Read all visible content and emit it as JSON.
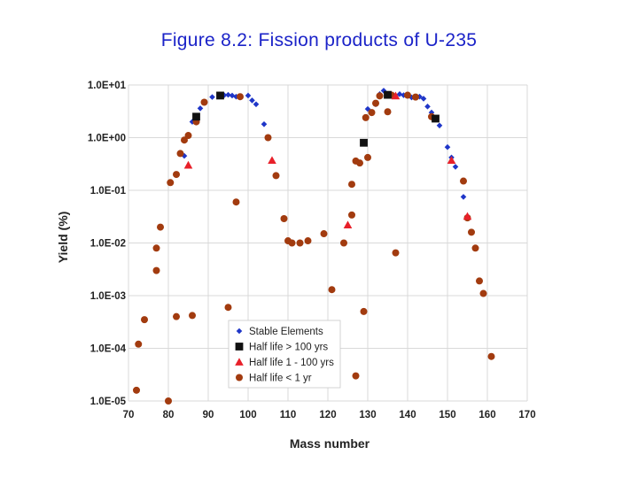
{
  "title": "Figure 8.2: Fission products of U-235",
  "colors": {
    "stable": "#1f36c8",
    "long": "#111111",
    "mid": "#e8202a",
    "short": "#a23b0f",
    "grid": "#d9d9d9",
    "title": "#1b23c8"
  },
  "chart_data": {
    "type": "scatter",
    "title": "Figure 8.2: Fission products of U-235",
    "xlabel": "Mass number",
    "ylabel": "Yield (%)",
    "xlim": [
      70,
      170
    ],
    "ylim_log10": [
      -5,
      1
    ],
    "x_ticks": [
      "70",
      "80",
      "90",
      "100",
      "110",
      "120",
      "130",
      "140",
      "150",
      "160",
      "170"
    ],
    "y_ticks": [
      "1.0E-05",
      "1.0E-04",
      "1.0E-03",
      "1.0E-02",
      "1.0E-01",
      "1.0E+00",
      "1.0E+01"
    ],
    "legend_position": "bottom-center",
    "series": [
      {
        "name": "Stable Elements",
        "marker": "diamond",
        "points": [
          [
            84,
            0.45
          ],
          [
            86,
            2.0
          ],
          [
            88,
            3.6
          ],
          [
            89,
            4.8
          ],
          [
            91,
            5.9
          ],
          [
            93,
            6.4
          ],
          [
            94,
            6.4
          ],
          [
            95,
            6.5
          ],
          [
            96,
            6.3
          ],
          [
            97,
            6.0
          ],
          [
            98,
            5.8
          ],
          [
            100,
            6.3
          ],
          [
            101,
            5.1
          ],
          [
            102,
            4.3
          ],
          [
            104,
            1.8
          ],
          [
            130,
            3.5
          ],
          [
            131,
            2.9
          ],
          [
            132,
            4.3
          ],
          [
            133,
            6.7
          ],
          [
            134,
            7.8
          ],
          [
            136,
            6.3
          ],
          [
            137,
            6.2
          ],
          [
            138,
            6.7
          ],
          [
            139,
            6.4
          ],
          [
            140,
            6.2
          ],
          [
            141,
            5.8
          ],
          [
            142,
            5.9
          ],
          [
            143,
            6.0
          ],
          [
            144,
            5.5
          ],
          [
            145,
            3.9
          ],
          [
            146,
            3.0
          ],
          [
            148,
            1.7
          ],
          [
            150,
            0.66
          ],
          [
            151,
            0.42
          ],
          [
            152,
            0.28
          ],
          [
            154,
            0.075
          ]
        ]
      },
      {
        "name": "Half life > 100 yrs",
        "marker": "square",
        "points": [
          [
            87,
            2.5
          ],
          [
            93,
            6.3
          ],
          [
            129,
            0.8
          ],
          [
            135,
            6.5
          ],
          [
            147,
            2.3
          ]
        ]
      },
      {
        "name": "Half life 1 - 100 yrs",
        "marker": "triangle",
        "points": [
          [
            85,
            0.3
          ],
          [
            106,
            0.37
          ],
          [
            125,
            0.022
          ],
          [
            137,
            6.2
          ],
          [
            151,
            0.37
          ],
          [
            155,
            0.032
          ]
        ]
      },
      {
        "name": "Half life < 1 yr",
        "marker": "circle",
        "points": [
          [
            72,
            1.6e-05
          ],
          [
            72.5,
            0.00012
          ],
          [
            74,
            0.00035
          ],
          [
            77,
            0.008
          ],
          [
            77,
            0.003
          ],
          [
            78,
            0.02
          ],
          [
            80,
            1e-05
          ],
          [
            80.5,
            0.14
          ],
          [
            82,
            0.2
          ],
          [
            82,
            0.0004
          ],
          [
            83,
            0.5
          ],
          [
            84,
            0.9
          ],
          [
            85,
            1.1
          ],
          [
            86,
            0.00042
          ],
          [
            87,
            2.0
          ],
          [
            89,
            4.7
          ],
          [
            95,
            0.0006
          ],
          [
            97,
            0.06
          ],
          [
            98,
            6.0
          ],
          [
            105,
            1.0
          ],
          [
            107,
            0.19
          ],
          [
            109,
            0.029
          ],
          [
            110,
            0.011
          ],
          [
            111,
            0.01
          ],
          [
            113,
            0.01
          ],
          [
            115,
            0.011
          ],
          [
            119,
            0.015
          ],
          [
            121,
            0.0013
          ],
          [
            124,
            0.01
          ],
          [
            126,
            0.034
          ],
          [
            126,
            0.13
          ],
          [
            127,
            0.36
          ],
          [
            127,
            3e-05
          ],
          [
            128,
            0.33
          ],
          [
            129,
            0.0005
          ],
          [
            129.5,
            2.4
          ],
          [
            130,
            0.42
          ],
          [
            131,
            3.0
          ],
          [
            132,
            4.5
          ],
          [
            133,
            6.2
          ],
          [
            135,
            3.1
          ],
          [
            136,
            6.4
          ],
          [
            137,
            0.0065
          ],
          [
            140,
            6.4
          ],
          [
            142,
            5.9
          ],
          [
            146,
            2.5
          ],
          [
            154,
            0.15
          ],
          [
            155,
            0.03
          ],
          [
            156,
            0.016
          ],
          [
            157,
            0.008
          ],
          [
            158,
            0.0019
          ],
          [
            159,
            0.0011
          ],
          [
            161,
            7e-05
          ]
        ]
      }
    ]
  }
}
